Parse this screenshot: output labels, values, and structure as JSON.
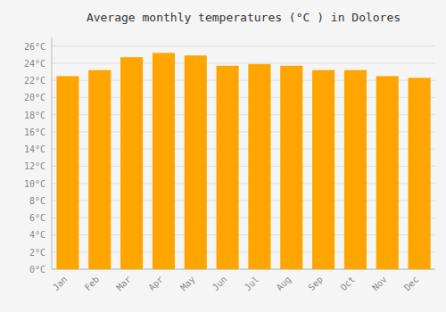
{
  "chart_data": {
    "type": "bar",
    "title": "Average monthly temperatures (°C ) in Dolores",
    "categories": [
      "Jan",
      "Feb",
      "Mar",
      "Apr",
      "May",
      "Jun",
      "Jul",
      "Aug",
      "Sep",
      "Oct",
      "Nov",
      "Dec"
    ],
    "values": [
      22.5,
      23.2,
      24.7,
      25.2,
      24.9,
      23.7,
      23.9,
      23.7,
      23.2,
      23.2,
      22.5,
      22.3
    ],
    "color": "#FFA500",
    "ylim": [
      0,
      27
    ],
    "yticks": [
      {
        "value": 0,
        "label": "0°C"
      },
      {
        "value": 2,
        "label": "2°C"
      },
      {
        "value": 4,
        "label": "4°C"
      },
      {
        "value": 6,
        "label": "6°C"
      },
      {
        "value": 8,
        "label": "8°C"
      },
      {
        "value": 10,
        "label": "10°C"
      },
      {
        "value": 12,
        "label": "12°C"
      },
      {
        "value": 14,
        "label": "14°C"
      },
      {
        "value": 16,
        "label": "16°C"
      },
      {
        "value": 18,
        "label": "18°C"
      },
      {
        "value": 20,
        "label": "20°C"
      },
      {
        "value": 22,
        "label": "22°C"
      },
      {
        "value": 24,
        "label": "24°C"
      },
      {
        "value": 26,
        "label": "26°C"
      }
    ],
    "grid": true
  }
}
